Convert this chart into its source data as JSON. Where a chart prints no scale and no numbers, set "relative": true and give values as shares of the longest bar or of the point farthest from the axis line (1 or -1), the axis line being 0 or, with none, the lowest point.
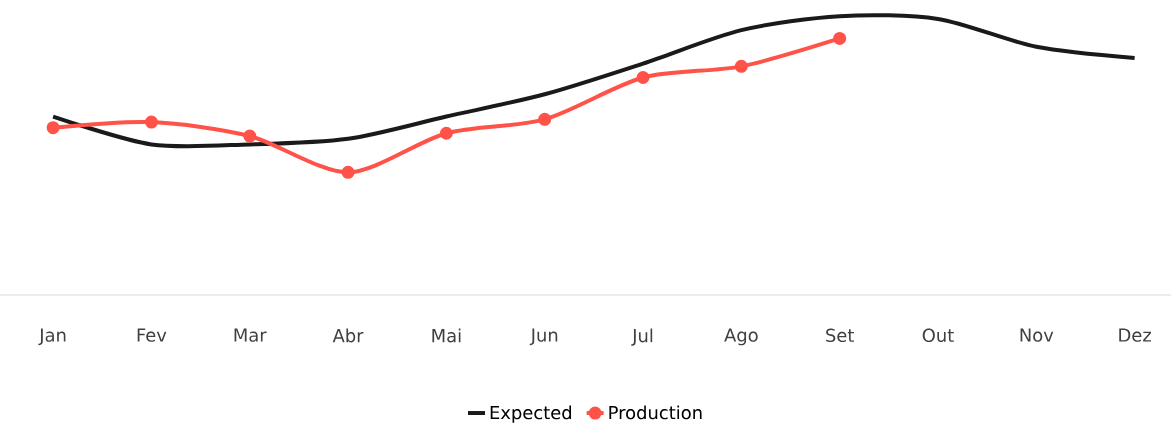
{
  "chart_data": {
    "type": "line",
    "relative": true,
    "legend": "bottom",
    "categories": [
      "Jan",
      "Fev",
      "Mar",
      "Abr",
      "Mai",
      "Jun",
      "Jul",
      "Ago",
      "Set",
      "Out",
      "Nov",
      "Dez"
    ],
    "series": [
      {
        "name": "Expected",
        "color": "#1a1a1a",
        "marker": "none",
        "values": [
          0.64,
          0.54,
          0.54,
          0.56,
          0.64,
          0.72,
          0.83,
          0.95,
          1.0,
          0.99,
          0.89,
          0.85
        ]
      },
      {
        "name": "Production",
        "color": "#ff5248",
        "marker": "circle",
        "values": [
          0.6,
          0.62,
          0.57,
          0.44,
          0.58,
          0.63,
          0.78,
          0.82,
          0.92,
          null,
          null,
          null
        ]
      }
    ]
  }
}
